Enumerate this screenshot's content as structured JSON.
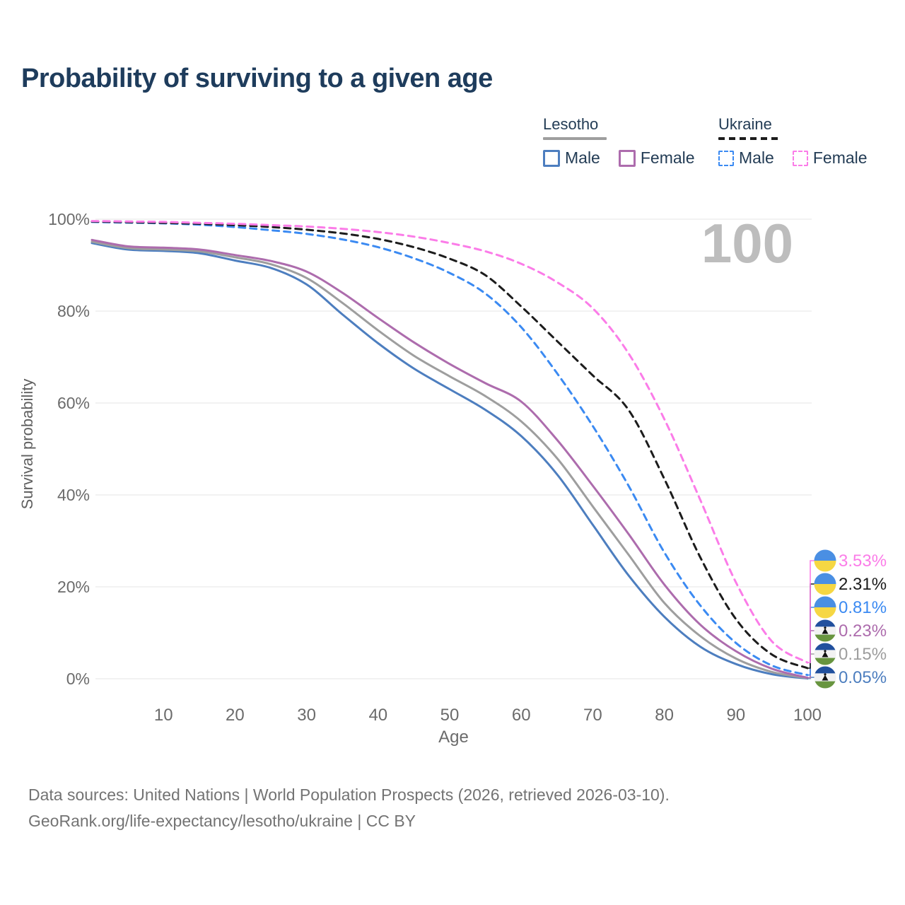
{
  "page": {
    "title": "Probability of surviving to a given age"
  },
  "legend": {
    "groups": [
      {
        "country": "Lesotho",
        "line_style": "solid",
        "line_color": "#9e9e9e",
        "items": [
          {
            "label": "Male",
            "color": "#4d7ebf"
          },
          {
            "label": "Female",
            "color": "#ad6cad"
          }
        ]
      },
      {
        "country": "Ukraine",
        "line_style": "dashed",
        "line_color": "#1c1c1c",
        "items": [
          {
            "label": "Male",
            "color": "#3b8af2"
          },
          {
            "label": "Female",
            "color": "#fb7ce8"
          }
        ]
      }
    ]
  },
  "chart_data": {
    "type": "line",
    "title": "Probability of surviving to a given age",
    "xlabel": "Age",
    "ylabel": "Survival probability",
    "xlim": [
      0,
      100
    ],
    "ylim": [
      0,
      100
    ],
    "xticks": [
      10,
      20,
      30,
      40,
      50,
      60,
      70,
      80,
      90,
      100
    ],
    "yticks": [
      0,
      20,
      40,
      60,
      80,
      100
    ],
    "ytick_suffix": "%",
    "grid": "horizontal",
    "age_indicator": "100",
    "x": [
      0,
      5,
      10,
      15,
      20,
      25,
      30,
      35,
      40,
      45,
      50,
      55,
      60,
      65,
      70,
      75,
      80,
      85,
      90,
      95,
      100
    ],
    "series": [
      {
        "name": "Lesotho Male",
        "country": "Lesotho",
        "sex": "Male",
        "color": "#4d7ebf",
        "dashed": false,
        "flag": "lesotho",
        "end_label": "0.05%",
        "values": [
          94.8,
          93.4,
          93.1,
          92.6,
          91.0,
          89.4,
          85.8,
          79.3,
          73.0,
          67.5,
          63.0,
          58.5,
          52.8,
          44.5,
          33.5,
          22.5,
          13.5,
          7.0,
          3.2,
          1.0,
          0.05
        ]
      },
      {
        "name": "Lesotho Both sexes",
        "country": "Lesotho",
        "sex": "Both sexes",
        "color": "#9e9e9e",
        "dashed": false,
        "flag": "lesotho",
        "end_label": "0.15%",
        "values": [
          95.1,
          93.7,
          93.4,
          93.0,
          91.7,
          90.2,
          87.2,
          81.8,
          75.8,
          70.3,
          65.8,
          61.5,
          56.0,
          48.0,
          37.5,
          27.0,
          16.5,
          9.3,
          4.4,
          1.5,
          0.15
        ]
      },
      {
        "name": "Lesotho Female",
        "country": "Lesotho",
        "sex": "Female",
        "color": "#ad6cad",
        "dashed": false,
        "flag": "lesotho",
        "end_label": "0.23%",
        "values": [
          95.5,
          94.1,
          93.8,
          93.4,
          92.2,
          90.9,
          88.6,
          84.0,
          78.5,
          73.2,
          68.5,
          64.3,
          60.3,
          52.0,
          42.0,
          31.5,
          20.5,
          11.8,
          6.0,
          2.2,
          0.23
        ]
      },
      {
        "name": "Ukraine Male",
        "country": "Ukraine",
        "sex": "Male",
        "color": "#3b8af2",
        "dashed": true,
        "flag": "ukraine",
        "end_label": "0.81%",
        "values": [
          99.4,
          99.25,
          99.1,
          98.8,
          98.3,
          97.6,
          96.8,
          95.6,
          93.9,
          91.5,
          88.3,
          83.8,
          76.5,
          66.5,
          55.0,
          42.0,
          27.5,
          16.0,
          7.8,
          2.9,
          0.81
        ]
      },
      {
        "name": "Ukraine Both sexes",
        "country": "Ukraine",
        "sex": "Both sexes",
        "color": "#1c1c1c",
        "dashed": true,
        "flag": "ukraine",
        "end_label": "2.31%",
        "values": [
          99.5,
          99.35,
          99.2,
          99.0,
          98.7,
          98.3,
          97.7,
          96.9,
          95.7,
          93.9,
          91.4,
          87.8,
          81.0,
          73.5,
          66.0,
          58.5,
          43.5,
          26.5,
          13.0,
          5.3,
          2.31
        ]
      },
      {
        "name": "Ukraine Female",
        "country": "Ukraine",
        "sex": "Female",
        "color": "#fb7ce8",
        "dashed": true,
        "flag": "ukraine",
        "end_label": "3.53%",
        "values": [
          99.6,
          99.5,
          99.4,
          99.2,
          99.0,
          98.7,
          98.4,
          97.9,
          97.2,
          96.2,
          94.8,
          93.0,
          90.3,
          86.3,
          80.6,
          70.8,
          56.5,
          39.0,
          21.0,
          8.2,
          3.53
        ]
      }
    ],
    "flag_colors": {
      "ukraine": {
        "top": "#4a8fe3",
        "bottom": "#f6d743"
      },
      "lesotho": {
        "top": "#21509e",
        "middle": "#f2f2f2",
        "bottom": "#68953f",
        "hat": "#111111"
      }
    }
  },
  "footer": {
    "line1": "Data sources: United Nations | World Population Prospects (2026, retrieved 2026-03-10).",
    "line2": "GeoRank.org/life-expectancy/lesotho/ukraine | CC BY"
  }
}
